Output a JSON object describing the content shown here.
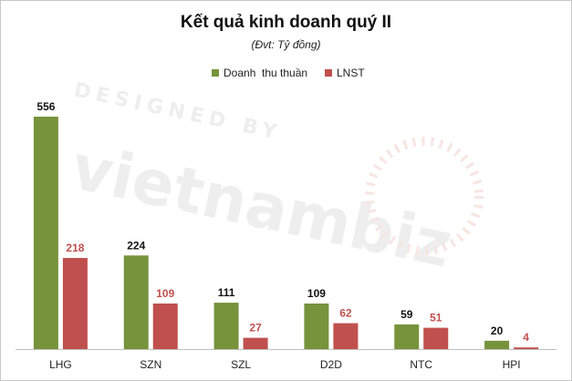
{
  "chart_data": {
    "type": "bar",
    "title": "Kết quả kinh doanh quý II",
    "subtitle": "(Đvt: Tỷ đồng)",
    "categories": [
      "LHG",
      "SZN",
      "SZL",
      "D2D",
      "NTC",
      "HPI"
    ],
    "series": [
      {
        "name": "Doanh  thu thuần",
        "values": [
          556,
          224,
          111,
          109,
          59,
          20
        ],
        "color": "#77933c"
      },
      {
        "name": "LNST",
        "values": [
          218,
          109,
          27,
          62,
          51,
          4
        ],
        "color": "#c0504d"
      }
    ],
    "ylim": [
      0,
      556
    ],
    "grid": false,
    "legend_position": "top-center",
    "data_label_colors": [
      "#111111",
      "#c0504d"
    ]
  }
}
